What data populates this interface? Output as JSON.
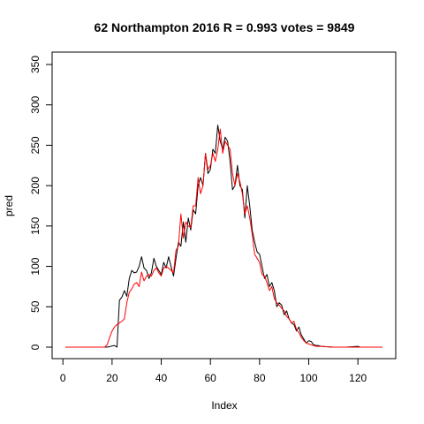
{
  "chart_data": {
    "type": "line",
    "title": "62 Northampton 2016 R = 0.993 votes = 9849",
    "xlabel": "Index",
    "ylabel": "pred",
    "xlim": [
      1,
      130
    ],
    "ylim": [
      0,
      350
    ],
    "xticks": [
      0,
      20,
      40,
      60,
      80,
      100,
      120
    ],
    "yticks": [
      0,
      50,
      100,
      150,
      200,
      250,
      300,
      350
    ],
    "grid": false,
    "series": [
      {
        "color": "#000000",
        "x": [
          1,
          18,
          21,
          22,
          23,
          24,
          25,
          26,
          27,
          28,
          29,
          30,
          31,
          32,
          33,
          34,
          35,
          36,
          37,
          38,
          39,
          40,
          41,
          42,
          43,
          44,
          45,
          46,
          47,
          48,
          49,
          50,
          51,
          52,
          53,
          54,
          55,
          56,
          57,
          58,
          59,
          60,
          61,
          62,
          63,
          64,
          65,
          66,
          67,
          68,
          69,
          70,
          71,
          72,
          73,
          74,
          75,
          76,
          77,
          78,
          79,
          80,
          81,
          82,
          83,
          84,
          85,
          86,
          87,
          88,
          89,
          90,
          91,
          92,
          93,
          94,
          95,
          96,
          97,
          98,
          99,
          100,
          101,
          102,
          103,
          104,
          105,
          110,
          115,
          120,
          121,
          125,
          130
        ],
        "y": [
          0,
          0,
          2,
          0,
          58,
          62,
          70,
          63,
          85,
          95,
          92,
          93,
          100,
          112,
          98,
          95,
          85,
          92,
          110,
          100,
          95,
          90,
          105,
          98,
          112,
          100,
          88,
          110,
          130,
          125,
          155,
          130,
          160,
          145,
          170,
          165,
          200,
          210,
          200,
          240,
          215,
          220,
          245,
          240,
          275,
          255,
          245,
          260,
          255,
          230,
          195,
          200,
          225,
          200,
          195,
          160,
          200,
          175,
          145,
          130,
          118,
          115,
          100,
          85,
          90,
          75,
          80,
          70,
          50,
          55,
          52,
          40,
          45,
          35,
          30,
          28,
          20,
          25,
          15,
          10,
          5,
          8,
          7,
          3,
          2,
          2,
          1,
          0,
          0,
          1,
          0,
          0,
          0
        ]
      },
      {
        "color": "#ff0000",
        "x": [
          1,
          17,
          18,
          19,
          20,
          21,
          22,
          23,
          24,
          25,
          26,
          27,
          28,
          29,
          30,
          31,
          32,
          33,
          34,
          35,
          36,
          37,
          38,
          39,
          40,
          41,
          42,
          43,
          44,
          45,
          46,
          47,
          48,
          49,
          50,
          51,
          52,
          53,
          54,
          55,
          56,
          57,
          58,
          59,
          60,
          61,
          62,
          63,
          64,
          65,
          66,
          67,
          68,
          69,
          70,
          71,
          72,
          73,
          74,
          75,
          76,
          77,
          78,
          79,
          80,
          81,
          82,
          83,
          84,
          85,
          86,
          87,
          88,
          89,
          90,
          91,
          92,
          93,
          94,
          95,
          96,
          97,
          98,
          99,
          100,
          101,
          102,
          103,
          104,
          105,
          110,
          115,
          120,
          125,
          130
        ],
        "y": [
          0,
          0,
          3,
          12,
          20,
          25,
          28,
          30,
          32,
          35,
          55,
          68,
          72,
          78,
          80,
          75,
          93,
          82,
          88,
          90,
          88,
          95,
          98,
          92,
          88,
          98,
          100,
          98,
          95,
          92,
          120,
          125,
          165,
          135,
          155,
          150,
          148,
          175,
          175,
          210,
          190,
          200,
          240,
          220,
          225,
          240,
          230,
          245,
          270,
          240,
          255,
          250,
          245,
          215,
          200,
          215,
          205,
          190,
          165,
          175,
          160,
          140,
          115,
          110,
          105,
          90,
          88,
          80,
          70,
          75,
          60,
          55,
          52,
          48,
          45,
          38,
          35,
          30,
          32,
          22,
          18,
          12,
          8,
          5,
          4,
          3,
          2,
          1,
          1,
          1,
          0,
          0,
          0,
          0,
          0
        ]
      }
    ]
  }
}
